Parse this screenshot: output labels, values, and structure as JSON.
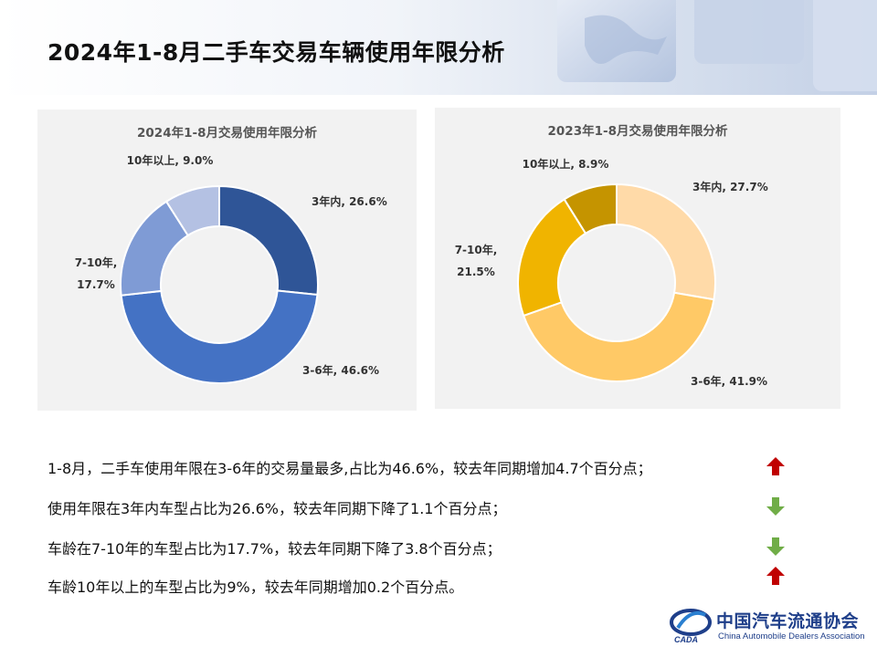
{
  "page_title": "2024年1-8月二手车交易车辆使用年限分析",
  "chart_data": [
    {
      "type": "pie",
      "donut": true,
      "title": "2024年1-8月交易使用年限分析",
      "categories": [
        "3年内",
        "3-6年",
        "7-10年",
        "10年以上"
      ],
      "values": [
        26.6,
        46.6,
        17.7,
        9.0
      ],
      "labels": [
        "3年内, 26.6%",
        "3-6年, 46.6%",
        "7-10年,\n17.7%",
        "10年以上, 9.0%"
      ],
      "colors": [
        "#2f5597",
        "#4472c4",
        "#7f9bd5",
        "#b4c1e3"
      ],
      "legend": "none"
    },
    {
      "type": "pie",
      "donut": true,
      "title": "2023年1-8月交易使用年限分析",
      "categories": [
        "3年内",
        "3-6年",
        "7-10年",
        "10年以上"
      ],
      "values": [
        27.7,
        41.9,
        21.5,
        8.9
      ],
      "labels": [
        "3年内, 27.7%",
        "3-6年, 41.9%",
        "7-10年,\n21.5%",
        "10年以上, 8.9%"
      ],
      "colors": [
        "#ffdaa8",
        "#ffc966",
        "#f0b400",
        "#c59400"
      ],
      "legend": "none"
    }
  ],
  "bullets": [
    {
      "text": "1-8月，二手车使用年限在3-6年的交易量最多,占比为46.6%，较去年同期增加4.7个百分点；",
      "trend": "up",
      "icon": "red-up-arrow-icon"
    },
    {
      "text": "使用年限在3年内车型占比为26.6%，较去年同期下降了1.1个百分点；",
      "trend": "down",
      "icon": "green-down-arrow-icon"
    },
    {
      "text": "车龄在7-10年的车型占比为17.7%，较去年同期下降了3.8个百分点；",
      "trend": "down",
      "icon": "green-down-arrow-icon"
    },
    {
      "text": "车龄10年以上的车型占比为9%，较去年同期增加0.2个百分点。",
      "trend": "up",
      "icon": "red-up-arrow-icon"
    }
  ],
  "colors": {
    "up": "#c00000",
    "down": "#70ad47",
    "brand": "#1f3f8a"
  },
  "logo": {
    "name_cn": "中国汽车流通协会",
    "name_en": "China Automobile Dealers Association",
    "mark_text": "CADA"
  }
}
